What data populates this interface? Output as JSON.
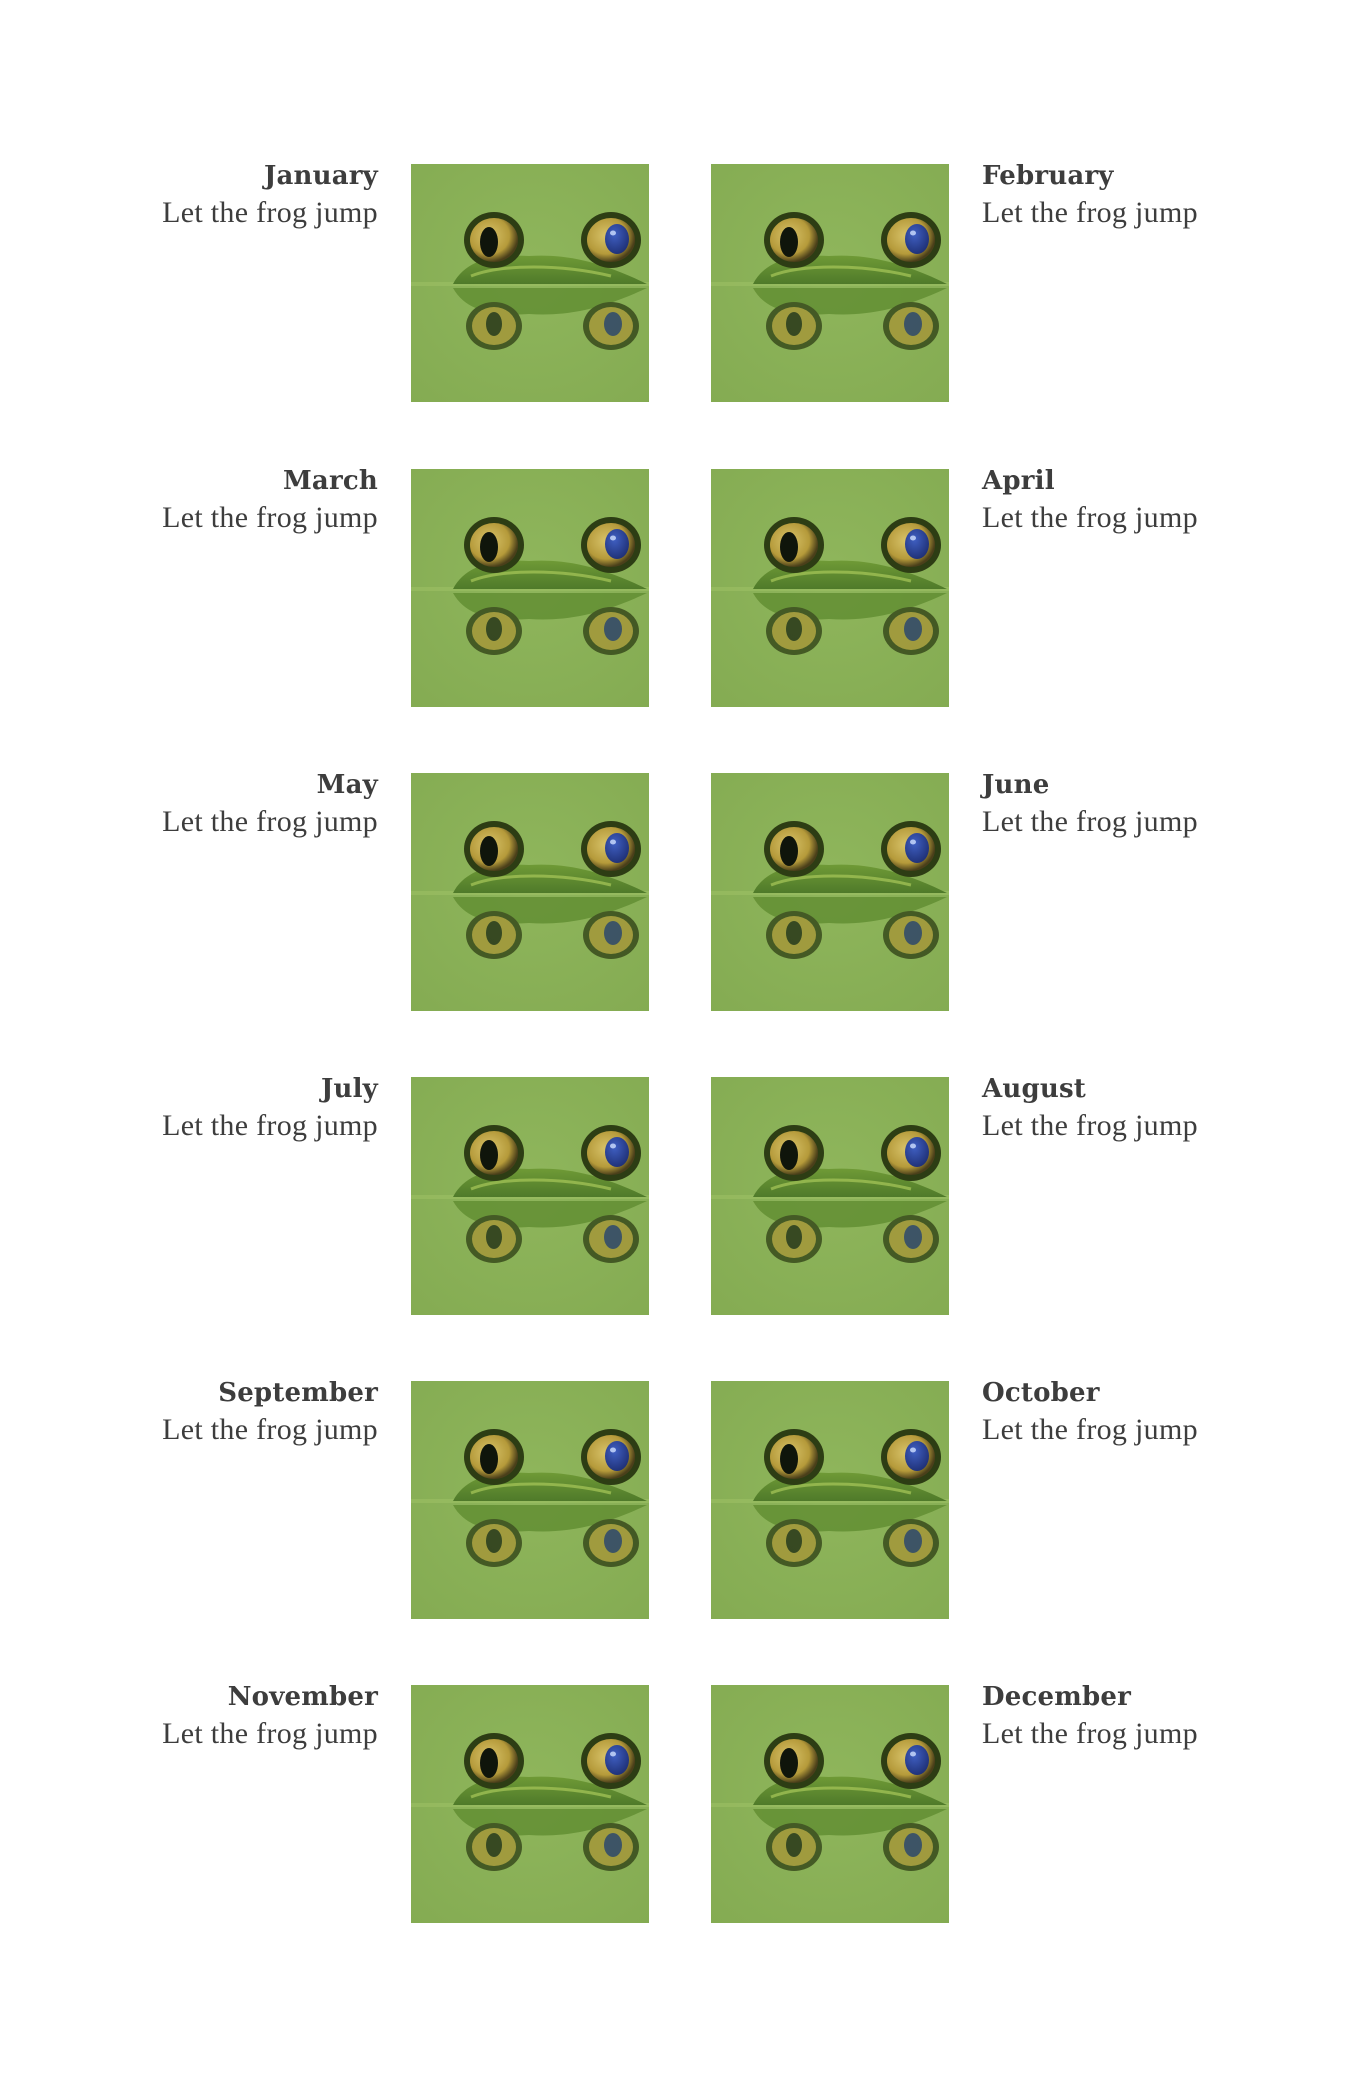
{
  "calendar": {
    "entries": [
      {
        "month": "January",
        "caption": "Let the frog jump",
        "image": "frog-eyes-reflection-photo"
      },
      {
        "month": "February",
        "caption": "Let the frog jump",
        "image": "frog-eyes-reflection-photo"
      },
      {
        "month": "March",
        "caption": "Let the frog jump",
        "image": "frog-eyes-reflection-photo"
      },
      {
        "month": "April",
        "caption": "Let the frog jump",
        "image": "frog-eyes-reflection-photo"
      },
      {
        "month": "May",
        "caption": "Let the frog jump",
        "image": "frog-eyes-reflection-photo"
      },
      {
        "month": "June",
        "caption": "Let the frog jump",
        "image": "frog-eyes-reflection-photo"
      },
      {
        "month": "July",
        "caption": "Let the frog jump",
        "image": "frog-eyes-reflection-photo"
      },
      {
        "month": "August",
        "caption": "Let the frog jump",
        "image": "frog-eyes-reflection-photo"
      },
      {
        "month": "September",
        "caption": "Let the frog jump",
        "image": "frog-eyes-reflection-photo"
      },
      {
        "month": "October",
        "caption": "Let the frog jump",
        "image": "frog-eyes-reflection-photo"
      },
      {
        "month": "November",
        "caption": "Let the frog jump",
        "image": "frog-eyes-reflection-photo"
      },
      {
        "month": "December",
        "caption": "Let the frog jump",
        "image": "frog-eyes-reflection-photo"
      }
    ]
  },
  "colors": {
    "text": "#3d3d3d",
    "photo_background": "#84ab52",
    "frog_body": "#4f7a2a",
    "eye_gold": "#b59a3a",
    "eye_pupil": "#1e2f74"
  }
}
